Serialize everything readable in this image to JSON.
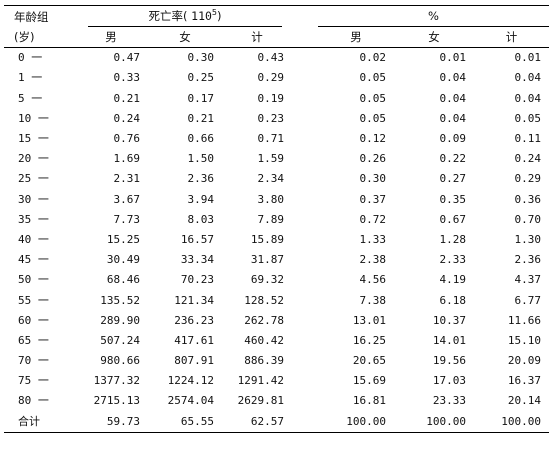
{
  "header": {
    "age_label_line1": "年龄组",
    "age_label_line2": "(岁)",
    "group_mortality": "死亡率(",
    "group_mortality_unit": "110",
    "group_mortality_sup": "5",
    "group_mortality_close": ")",
    "group_percent": "%",
    "sub": [
      "男",
      "女",
      "计",
      "男",
      "女",
      "计"
    ]
  },
  "rows": [
    {
      "age": "0 一",
      "v": [
        "0.47",
        "0.30",
        "0.43",
        "0.02",
        "0.01",
        "0.01"
      ]
    },
    {
      "age": "1 一",
      "v": [
        "0.33",
        "0.25",
        "0.29",
        "0.05",
        "0.04",
        "0.04"
      ]
    },
    {
      "age": "5 一",
      "v": [
        "0.21",
        "0.17",
        "0.19",
        "0.05",
        "0.04",
        "0.04"
      ]
    },
    {
      "age": "10 一",
      "v": [
        "0.24",
        "0.21",
        "0.23",
        "0.05",
        "0.04",
        "0.05"
      ]
    },
    {
      "age": "15 一",
      "v": [
        "0.76",
        "0.66",
        "0.71",
        "0.12",
        "0.09",
        "0.11"
      ]
    },
    {
      "age": "20 一",
      "v": [
        "1.69",
        "1.50",
        "1.59",
        "0.26",
        "0.22",
        "0.24"
      ]
    },
    {
      "age": "25 一",
      "v": [
        "2.31",
        "2.36",
        "2.34",
        "0.30",
        "0.27",
        "0.29"
      ]
    },
    {
      "age": "30 一",
      "v": [
        "3.67",
        "3.94",
        "3.80",
        "0.37",
        "0.35",
        "0.36"
      ]
    },
    {
      "age": "35 一",
      "v": [
        "7.73",
        "8.03",
        "7.89",
        "0.72",
        "0.67",
        "0.70"
      ]
    },
    {
      "age": "40 一",
      "v": [
        "15.25",
        "16.57",
        "15.89",
        "1.33",
        "1.28",
        "1.30"
      ]
    },
    {
      "age": "45 一",
      "v": [
        "30.49",
        "33.34",
        "31.87",
        "2.38",
        "2.33",
        "2.36"
      ]
    },
    {
      "age": "50 一",
      "v": [
        "68.46",
        "70.23",
        "69.32",
        "4.56",
        "4.19",
        "4.37"
      ]
    },
    {
      "age": "55 一",
      "v": [
        "135.52",
        "121.34",
        "128.52",
        "7.38",
        "6.18",
        "6.77"
      ]
    },
    {
      "age": "60 一",
      "v": [
        "289.90",
        "236.23",
        "262.78",
        "13.01",
        "10.37",
        "11.66"
      ]
    },
    {
      "age": "65 一",
      "v": [
        "507.24",
        "417.61",
        "460.42",
        "16.25",
        "14.01",
        "15.10"
      ]
    },
    {
      "age": "70 一",
      "v": [
        "980.66",
        "807.91",
        "886.39",
        "20.65",
        "19.56",
        "20.09"
      ]
    },
    {
      "age": "75 一",
      "v": [
        "1377.32",
        "1224.12",
        "1291.42",
        "15.69",
        "17.03",
        "16.37"
      ]
    },
    {
      "age": "80 一",
      "v": [
        "2715.13",
        "2574.04",
        "2629.81",
        "16.81",
        "23.33",
        "20.14"
      ]
    },
    {
      "age": "合计",
      "v": [
        "59.73",
        "65.55",
        "62.57",
        "100.00",
        "100.00",
        "100.00"
      ]
    }
  ]
}
